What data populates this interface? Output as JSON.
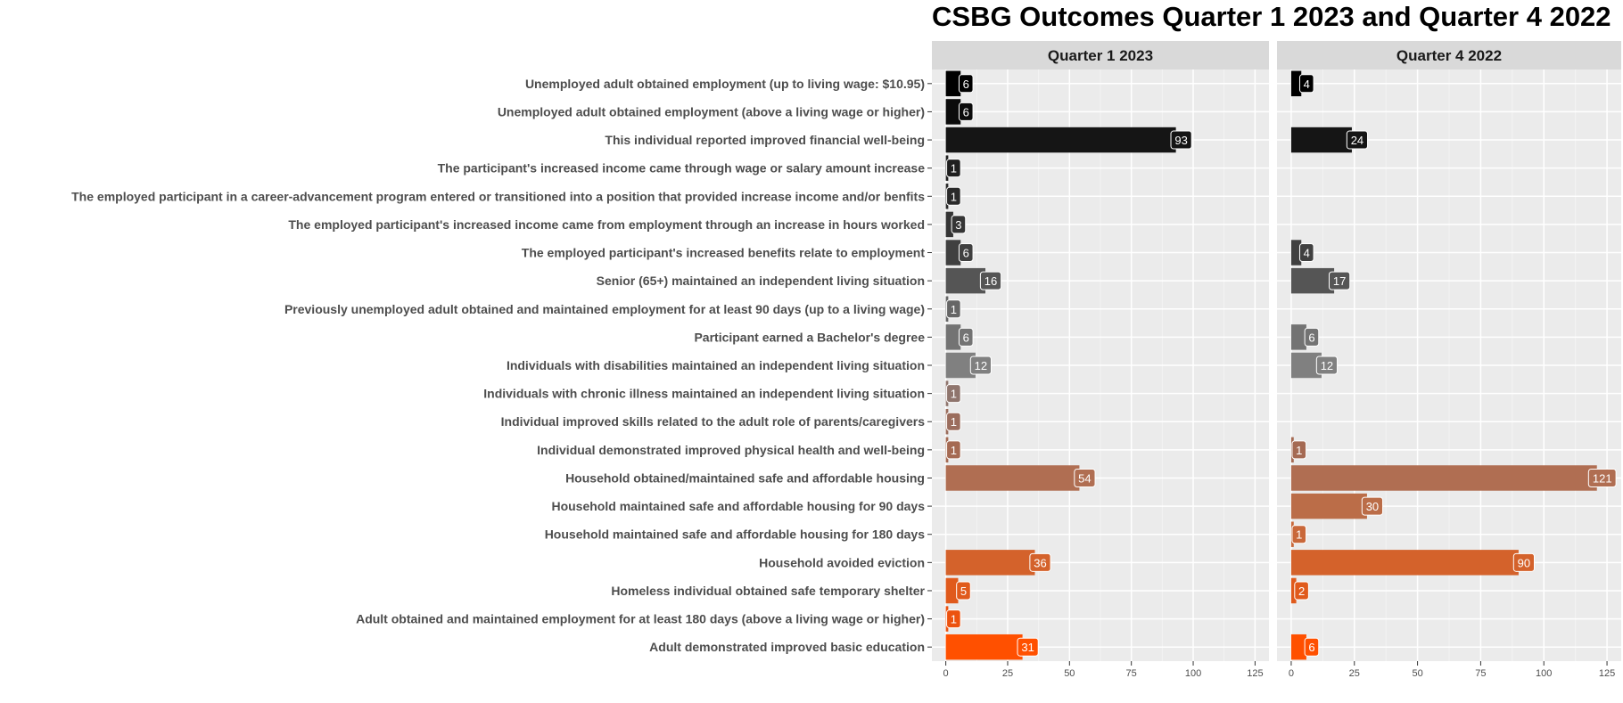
{
  "chart_data": {
    "type": "bar",
    "orientation": "horizontal",
    "title": "CSBG Outcomes Quarter 1 2023 and Quarter 4 2022",
    "xlabel": "",
    "ylabel": "",
    "xlim": [
      0,
      125
    ],
    "ticks": [
      "0",
      "25",
      "50",
      "75",
      "100",
      "125"
    ],
    "grid": true,
    "legend": "none",
    "categories": [
      "Unemployed adult obtained employment (up to living wage: $10.95)",
      "Unemployed adult obtained employment (above a living wage or higher)",
      "This individual reported improved financial well-being",
      "The participant's increased income came through wage or salary amount increase",
      "The employed participant in a career-advancement program entered or transitioned into a position that provided increase income and/or benfits",
      "The employed participant's increased income came from employment through an increase in hours worked",
      "The employed participant's increased benefits relate to employment",
      "Senior (65+) maintained an independent living situation",
      "Previously unemployed adult obtained and maintained employment for at least 90 days (up to a living wage)",
      "Participant earned a Bachelor's degree",
      "Individuals with disabilities maintained an independent living situation",
      "Individuals with chronic illness maintained an independent living situation",
      "Individual improved skills related to the adult role of parents/caregivers",
      "Individual demonstrated improved physical health and well-being",
      "Household obtained/maintained safe and affordable housing",
      "Household maintained safe and affordable housing for 90 days",
      "Household maintained safe and affordable housing for 180 days",
      "Household avoided eviction",
      "Homeless individual obtained safe temporary shelter",
      "Adult obtained and maintained employment for at least 180 days (above a living wage or higher)",
      "Adult demonstrated improved basic education"
    ],
    "colors": [
      "#000000",
      "#0b0b0b",
      "#151515",
      "#202020",
      "#2a2a2a",
      "#353535",
      "#404040",
      "#555555",
      "#666666",
      "#737373",
      "#808080",
      "#8f756d",
      "#9b6d5d",
      "#a56a53",
      "#b06e52",
      "#bb6d48",
      "#c9683a",
      "#d4622b",
      "#e05a1c",
      "#ec520f",
      "#ff5000"
    ],
    "series": [
      {
        "name": "Quarter 1 2023",
        "values": [
          6,
          6,
          93,
          1,
          1,
          3,
          6,
          16,
          1,
          6,
          12,
          1,
          1,
          1,
          54,
          null,
          null,
          36,
          5,
          1,
          31
        ]
      },
      {
        "name": "Quarter 4 2022",
        "values": [
          4,
          null,
          24,
          null,
          null,
          null,
          4,
          17,
          null,
          6,
          12,
          null,
          null,
          1,
          121,
          30,
          1,
          90,
          2,
          null,
          6
        ]
      }
    ]
  }
}
